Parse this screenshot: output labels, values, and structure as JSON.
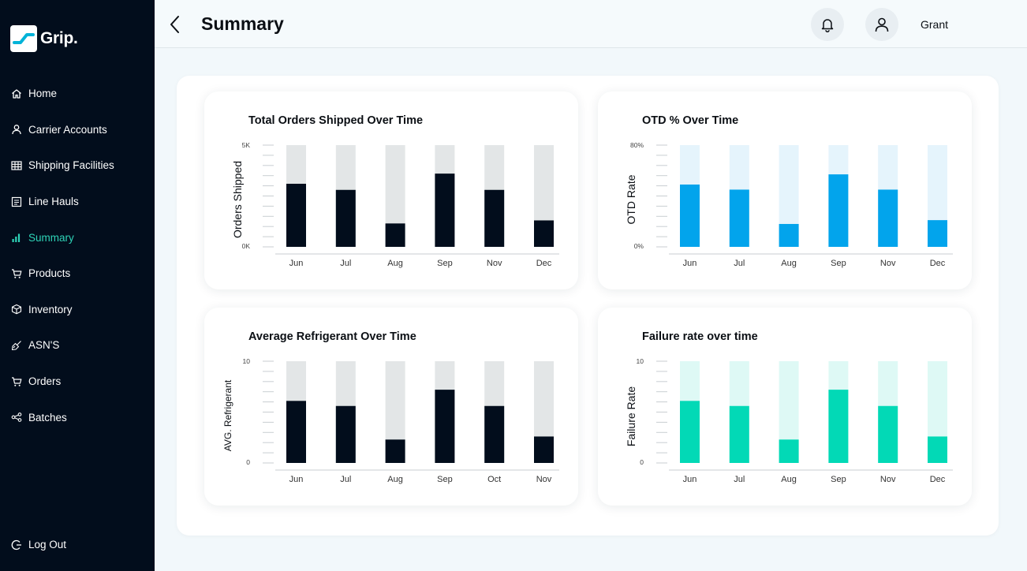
{
  "sidebar": {
    "brand": "Grip.",
    "items": [
      {
        "label": "Home",
        "icon": "home-icon",
        "active": false
      },
      {
        "label": "Carrier Accounts",
        "icon": "user-icon",
        "active": false
      },
      {
        "label": "Shipping Facilities",
        "icon": "grid-icon",
        "active": false
      },
      {
        "label": "Line Hauls",
        "icon": "list-icon",
        "active": false
      },
      {
        "label": "Summary",
        "icon": "bar-chart-icon",
        "active": true
      },
      {
        "label": "Products",
        "icon": "cart-icon",
        "active": false
      },
      {
        "label": "Inventory",
        "icon": "box-icon",
        "active": false
      },
      {
        "label": "ASN'S",
        "icon": "broom-icon",
        "active": false
      },
      {
        "label": "Orders",
        "icon": "cart-icon",
        "active": false
      },
      {
        "label": "Batches",
        "icon": "nodes-icon",
        "active": false
      }
    ],
    "logout": "Log Out"
  },
  "header": {
    "title": "Summary",
    "user_name": "Grant"
  },
  "colors": {
    "sidebar_bg": "#020d1c",
    "accent": "#2ed3b7",
    "dark_bar": "#020d1c",
    "dark_track": "#e3e6e7",
    "blue_bar": "#02a4ec",
    "blue_track": "#e5f4fc",
    "teal_bar": "#02d9b6",
    "teal_track": "#def9f5"
  },
  "chart_data": [
    {
      "type": "bar",
      "title": "Total Orders Shipped Over Time",
      "ylabel": "Orders Shipped",
      "y_ticks": [
        "5K",
        "0K"
      ],
      "ylim": [
        0,
        5000
      ],
      "categories": [
        "Jun",
        "Jul",
        "Aug",
        "Sep",
        "Nov",
        "Dec"
      ],
      "values": [
        3100,
        2800,
        1150,
        3600,
        2800,
        1300
      ],
      "bar_color": "#020d1c",
      "track_color": "#e3e6e7"
    },
    {
      "type": "bar",
      "title": "OTD % Over Time",
      "ylabel": "OTD Rate",
      "y_ticks": [
        "80%",
        "0%"
      ],
      "ylim": [
        0,
        80
      ],
      "categories": [
        "Jun",
        "Jul",
        "Aug",
        "Sep",
        "Nov",
        "Dec"
      ],
      "values": [
        49,
        45,
        18,
        57,
        45,
        21
      ],
      "bar_color": "#02a4ec",
      "track_color": "#e5f4fc"
    },
    {
      "type": "bar",
      "title": "Average Refrigerant Over Time",
      "ylabel": "AVG. Refrigerant",
      "y_ticks": [
        "10",
        "0"
      ],
      "ylim": [
        0,
        10
      ],
      "categories": [
        "Jun",
        "Jul",
        "Aug",
        "Sep",
        "Oct",
        "Nov"
      ],
      "values": [
        6.1,
        5.6,
        2.3,
        7.2,
        5.6,
        2.6
      ],
      "bar_color": "#020d1c",
      "track_color": "#e3e6e7"
    },
    {
      "type": "bar",
      "title": "Failure rate over time",
      "ylabel": "Failure Rate",
      "y_ticks": [
        "10",
        "0"
      ],
      "ylim": [
        0,
        10
      ],
      "categories": [
        "Jun",
        "Jul",
        "Aug",
        "Sep",
        "Nov",
        "Dec"
      ],
      "values": [
        6.1,
        5.6,
        2.3,
        7.2,
        5.6,
        2.6
      ],
      "bar_color": "#02d9b6",
      "track_color": "#def9f5"
    }
  ]
}
